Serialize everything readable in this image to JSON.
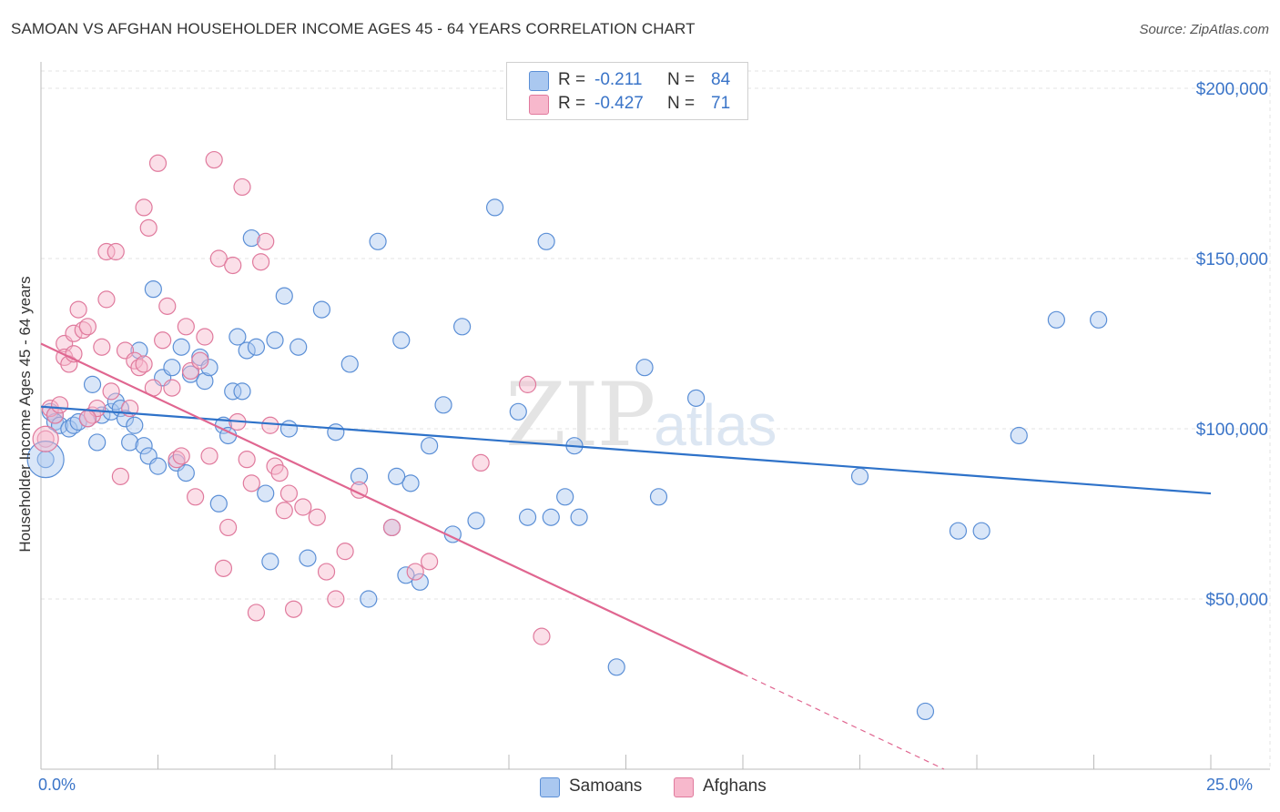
{
  "header": {
    "title": "SAMOAN VS AFGHAN HOUSEHOLDER INCOME AGES 45 - 64 YEARS CORRELATION CHART",
    "source": "Source: ZipAtlas.com"
  },
  "watermark": {
    "zip": "ZIP",
    "atlas": "atlas"
  },
  "legend": {
    "rows": [
      {
        "r_label": "R =",
        "r_value": "-0.211",
        "n_label": "N =",
        "n_value": "84",
        "color": "#aac8f0",
        "stroke": "#5b8fd6"
      },
      {
        "r_label": "R =",
        "r_value": "-0.427",
        "n_label": "N =",
        "n_value": "71",
        "color": "#f7b8cc",
        "stroke": "#e07a9d"
      }
    ]
  },
  "bottom_legend": [
    {
      "label": "Samoans",
      "color": "#aac8f0"
    },
    {
      "label": "Afghans",
      "color": "#f7b8cc"
    }
  ],
  "axes": {
    "ylabel": "Householder Income Ages 45 - 64 years",
    "x_min_label": "0.0%",
    "x_max_label": "25.0%",
    "y_ticks": [
      "$200,000",
      "$150,000",
      "$100,000",
      "$50,000"
    ]
  },
  "chart_data": {
    "type": "scatter",
    "title": "SAMOAN VS AFGHAN HOUSEHOLDER INCOME AGES 45 - 64 YEARS CORRELATION CHART",
    "xlabel": "",
    "ylabel": "Householder Income Ages 45 - 64 years",
    "xlim": [
      0,
      25
    ],
    "ylim": [
      0,
      200000
    ],
    "y_tick_values": [
      200000,
      150000,
      100000,
      50000
    ],
    "grid": true,
    "legend_position": "top-center",
    "colors": {
      "samoans": "#4a86d4",
      "afghans": "#e46d97"
    },
    "series": [
      {
        "name": "Samoans",
        "r": -0.211,
        "n": 84,
        "trend": {
          "x": [
            0,
            25
          ],
          "y": [
            106500,
            81000
          ]
        },
        "points": [
          [
            0.1,
            91000
          ],
          [
            0.2,
            105000
          ],
          [
            0.3,
            104000
          ],
          [
            0.3,
            102000
          ],
          [
            0.4,
            101000
          ],
          [
            0.6,
            100000
          ],
          [
            0.7,
            101000
          ],
          [
            0.8,
            102000
          ],
          [
            1.0,
            103000
          ],
          [
            1.1,
            113000
          ],
          [
            1.2,
            96000
          ],
          [
            1.3,
            104000
          ],
          [
            1.5,
            105000
          ],
          [
            1.6,
            108000
          ],
          [
            1.7,
            106000
          ],
          [
            1.8,
            103000
          ],
          [
            1.9,
            96000
          ],
          [
            2.0,
            101000
          ],
          [
            2.1,
            123000
          ],
          [
            2.2,
            95000
          ],
          [
            2.3,
            92000
          ],
          [
            2.4,
            141000
          ],
          [
            2.5,
            89000
          ],
          [
            2.6,
            115000
          ],
          [
            2.8,
            118000
          ],
          [
            2.9,
            90000
          ],
          [
            3.0,
            124000
          ],
          [
            3.1,
            87000
          ],
          [
            3.2,
            116000
          ],
          [
            3.4,
            121000
          ],
          [
            3.5,
            114000
          ],
          [
            3.6,
            118000
          ],
          [
            3.8,
            78000
          ],
          [
            3.9,
            101000
          ],
          [
            4.0,
            98000
          ],
          [
            4.1,
            111000
          ],
          [
            4.2,
            127000
          ],
          [
            4.3,
            111000
          ],
          [
            4.4,
            123000
          ],
          [
            4.5,
            156000
          ],
          [
            4.6,
            124000
          ],
          [
            4.8,
            81000
          ],
          [
            4.9,
            61000
          ],
          [
            5.0,
            126000
          ],
          [
            5.2,
            139000
          ],
          [
            5.3,
            100000
          ],
          [
            5.5,
            124000
          ],
          [
            5.7,
            62000
          ],
          [
            6.0,
            135000
          ],
          [
            6.3,
            99000
          ],
          [
            6.6,
            119000
          ],
          [
            6.8,
            86000
          ],
          [
            7.0,
            50000
          ],
          [
            7.2,
            155000
          ],
          [
            7.5,
            71000
          ],
          [
            7.7,
            126000
          ],
          [
            7.8,
            57000
          ],
          [
            7.9,
            84000
          ],
          [
            8.1,
            55000
          ],
          [
            8.3,
            95000
          ],
          [
            8.6,
            107000
          ],
          [
            8.8,
            69000
          ],
          [
            9.0,
            130000
          ],
          [
            9.3,
            73000
          ],
          [
            9.7,
            165000
          ],
          [
            10.2,
            105000
          ],
          [
            10.4,
            74000
          ],
          [
            10.8,
            155000
          ],
          [
            10.9,
            74000
          ],
          [
            11.2,
            80000
          ],
          [
            11.4,
            95000
          ],
          [
            11.5,
            74000
          ],
          [
            12.3,
            30000
          ],
          [
            12.9,
            118000
          ],
          [
            13.2,
            80000
          ],
          [
            14.0,
            109000
          ],
          [
            17.5,
            86000
          ],
          [
            18.9,
            17000
          ],
          [
            19.6,
            70000
          ],
          [
            20.1,
            70000
          ],
          [
            20.9,
            98000
          ],
          [
            21.7,
            132000
          ],
          [
            22.6,
            132000
          ],
          [
            7.6,
            86000
          ]
        ]
      },
      {
        "name": "Afghans",
        "r": -0.427,
        "n": 71,
        "trend": {
          "x": [
            0,
            15
          ],
          "y": [
            125000,
            28000
          ]
        },
        "trend_dashed": {
          "x": [
            15,
            19.3
          ],
          "y": [
            28000,
            0
          ]
        },
        "points": [
          [
            0.1,
            97000
          ],
          [
            0.2,
            106000
          ],
          [
            0.3,
            104000
          ],
          [
            0.4,
            107000
          ],
          [
            0.5,
            125000
          ],
          [
            0.5,
            121000
          ],
          [
            0.6,
            119000
          ],
          [
            0.7,
            122000
          ],
          [
            0.7,
            128000
          ],
          [
            0.8,
            135000
          ],
          [
            0.9,
            129000
          ],
          [
            1.0,
            130000
          ],
          [
            1.1,
            104000
          ],
          [
            1.2,
            106000
          ],
          [
            1.3,
            124000
          ],
          [
            1.4,
            138000
          ],
          [
            1.4,
            152000
          ],
          [
            1.5,
            111000
          ],
          [
            1.6,
            152000
          ],
          [
            1.7,
            86000
          ],
          [
            1.8,
            123000
          ],
          [
            1.9,
            106000
          ],
          [
            2.0,
            120000
          ],
          [
            2.1,
            118000
          ],
          [
            2.2,
            165000
          ],
          [
            2.2,
            119000
          ],
          [
            2.3,
            159000
          ],
          [
            2.4,
            112000
          ],
          [
            2.5,
            178000
          ],
          [
            2.6,
            126000
          ],
          [
            2.7,
            136000
          ],
          [
            2.8,
            112000
          ],
          [
            2.9,
            91000
          ],
          [
            3.0,
            92000
          ],
          [
            3.1,
            130000
          ],
          [
            3.2,
            117000
          ],
          [
            3.3,
            80000
          ],
          [
            3.4,
            120000
          ],
          [
            3.5,
            127000
          ],
          [
            3.6,
            92000
          ],
          [
            3.7,
            179000
          ],
          [
            3.8,
            150000
          ],
          [
            3.9,
            59000
          ],
          [
            4.0,
            71000
          ],
          [
            4.1,
            148000
          ],
          [
            4.2,
            102000
          ],
          [
            4.3,
            171000
          ],
          [
            4.4,
            91000
          ],
          [
            4.5,
            84000
          ],
          [
            4.6,
            46000
          ],
          [
            4.7,
            149000
          ],
          [
            4.8,
            155000
          ],
          [
            4.9,
            101000
          ],
          [
            5.0,
            89000
          ],
          [
            5.1,
            87000
          ],
          [
            5.2,
            76000
          ],
          [
            5.3,
            81000
          ],
          [
            5.4,
            47000
          ],
          [
            5.6,
            77000
          ],
          [
            5.9,
            74000
          ],
          [
            6.1,
            58000
          ],
          [
            6.3,
            50000
          ],
          [
            6.5,
            64000
          ],
          [
            6.8,
            82000
          ],
          [
            7.5,
            71000
          ],
          [
            8.0,
            58000
          ],
          [
            10.4,
            113000
          ],
          [
            10.7,
            39000
          ],
          [
            9.4,
            90000
          ],
          [
            8.3,
            61000
          ],
          [
            1.0,
            103000
          ]
        ]
      }
    ]
  }
}
